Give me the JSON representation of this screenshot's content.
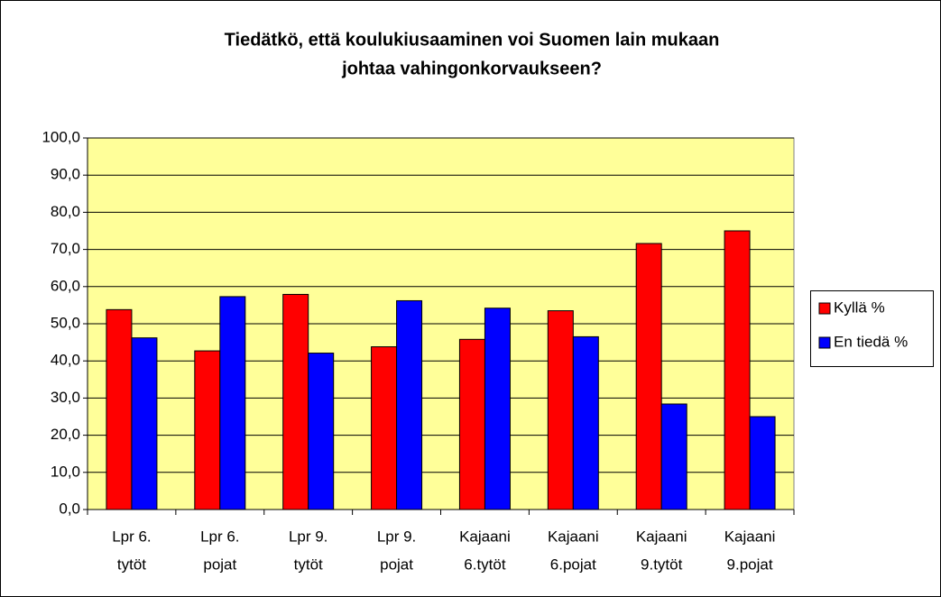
{
  "chart_data": {
    "type": "bar",
    "title": [
      "Tiedätkö, että koulukiusaaminen  voi Suomen lain mukaan",
      "johtaa vahingonkorvaukseen?"
    ],
    "categories": [
      [
        "Lpr 6.",
        "tytöt"
      ],
      [
        "Lpr 6.",
        "pojat"
      ],
      [
        "Lpr 9.",
        "tytöt"
      ],
      [
        "Lpr 9.",
        "pojat"
      ],
      [
        "Kajaani",
        "6.tytöt"
      ],
      [
        "Kajaani",
        "6.pojat"
      ],
      [
        "Kajaani",
        "9.tytöt"
      ],
      [
        "Kajaani",
        "9.pojat"
      ]
    ],
    "series": [
      {
        "name": "Kyllä %",
        "color": "#ff0000",
        "values": [
          53.8,
          42.7,
          57.9,
          43.8,
          45.8,
          53.5,
          71.6,
          75.0
        ]
      },
      {
        "name": "En tiedä %",
        "color": "#0000ff",
        "values": [
          46.2,
          57.3,
          42.1,
          56.2,
          54.2,
          46.5,
          28.4,
          25.0
        ]
      }
    ],
    "ylim": [
      0,
      100
    ],
    "yticks": [
      {
        "value": 0,
        "label": "0,0"
      },
      {
        "value": 10,
        "label": "10,0"
      },
      {
        "value": 20,
        "label": "20,0"
      },
      {
        "value": 30,
        "label": "30,0"
      },
      {
        "value": 40,
        "label": "40,0"
      },
      {
        "value": 50,
        "label": "50,0"
      },
      {
        "value": 60,
        "label": "60,0"
      },
      {
        "value": 70,
        "label": "70,0"
      },
      {
        "value": 80,
        "label": "80,0"
      },
      {
        "value": 90,
        "label": "90,0"
      },
      {
        "value": 100,
        "label": "100,0"
      }
    ],
    "grid": true,
    "legend": "right"
  }
}
